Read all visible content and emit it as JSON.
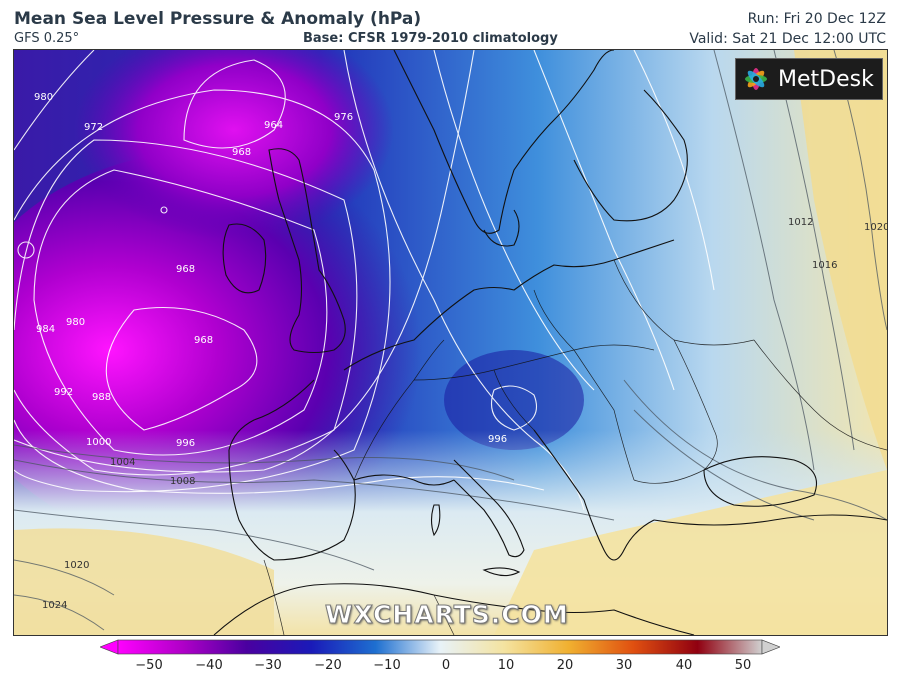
{
  "header": {
    "title": "Mean Sea Level Pressure & Anomaly (hPa)",
    "model": "GFS 0.25°",
    "base": "Base: CFSR 1979-2010 climatology",
    "run": "Run: Fri 20 Dec 12Z",
    "valid": "Valid: Sat 21 Dec 12:00 UTC"
  },
  "logo": {
    "text": "MetDesk"
  },
  "watermark": "WXCHARTS.COM",
  "colorbar": {
    "ticks": [
      "−50",
      "−40",
      "−30",
      "−20",
      "−10",
      "0",
      "10",
      "20",
      "30",
      "40",
      "50"
    ],
    "colors": [
      "#ff00ff",
      "#b000c8",
      "#4a00a0",
      "#1a1ab8",
      "#1e6fd0",
      "#7fb8e8",
      "#e8f2f8",
      "#f4e3a0",
      "#f0b030",
      "#e05010",
      "#900010",
      "#400010",
      "#d0d0d0"
    ]
  },
  "isobars": {
    "labels": [
      "964",
      "968",
      "968",
      "968",
      "972",
      "976",
      "980",
      "980",
      "984",
      "988",
      "992",
      "996",
      "996",
      "1000",
      "1004",
      "1008",
      "1012",
      "1016",
      "1020",
      "1020",
      "1024"
    ]
  }
}
